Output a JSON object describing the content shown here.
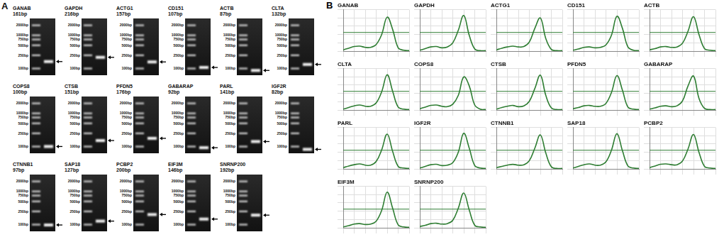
{
  "panel_a": {
    "label": "A",
    "ladder": [
      {
        "value": 2000,
        "label": "2000bp"
      },
      {
        "value": 1000,
        "label": "1000bp"
      },
      {
        "value": 750,
        "label": "750bp"
      },
      {
        "value": 500,
        "label": "500bp"
      },
      {
        "value": 250,
        "label": "250bp"
      },
      {
        "value": 100,
        "label": "100bp"
      }
    ],
    "rows": [
      [
        {
          "gene": "GANAB",
          "product": {
            "value": 161,
            "label": "161bp"
          }
        },
        {
          "gene": "GAPDH",
          "product": {
            "value": 216,
            "label": "216bp"
          }
        },
        {
          "gene": "ACTG1",
          "product": {
            "value": 157,
            "label": "157bp"
          }
        },
        {
          "gene": "CD151",
          "product": {
            "value": 107,
            "label": "107bp"
          }
        },
        {
          "gene": "ACTB",
          "product": {
            "value": 87,
            "label": "87bp"
          }
        },
        {
          "gene": "CLTA",
          "product": {
            "value": 132,
            "label": "132bp"
          }
        }
      ],
      [
        {
          "gene": "COPS8",
          "product": {
            "value": 100,
            "label": "100bp"
          }
        },
        {
          "gene": "CTSB",
          "product": {
            "value": 151,
            "label": "151bp"
          }
        },
        {
          "gene": "PFDN5",
          "product": {
            "value": 176,
            "label": "176bp"
          }
        },
        {
          "gene": "GABARAP",
          "product": {
            "value": 92,
            "label": "92bp"
          }
        },
        {
          "gene": "PARL",
          "product": {
            "value": 141,
            "label": "141bp"
          }
        },
        {
          "gene": "IGF2R",
          "product": {
            "value": 82,
            "label": "82bp"
          }
        }
      ],
      [
        {
          "gene": "CTNNB1",
          "product": {
            "value": 97,
            "label": "97bp"
          }
        },
        {
          "gene": "SAP18",
          "product": {
            "value": 127,
            "label": "127bp"
          }
        },
        {
          "gene": "PCBP2",
          "product": {
            "value": 200,
            "label": "200bp"
          }
        },
        {
          "gene": "EIF3M",
          "product": {
            "value": 146,
            "label": "146bp"
          }
        },
        {
          "gene": "SNRNP200",
          "product": {
            "value": 192,
            "label": "192bp"
          }
        }
      ]
    ]
  },
  "panel_b": {
    "label": "B"
  },
  "chart_data": [
    {
      "type": "line",
      "title": "GANAB",
      "x": [
        65,
        67.5,
        70,
        72.5,
        75,
        77.5,
        80,
        82.5,
        85,
        87.5,
        90,
        92.5,
        95
      ],
      "values": [
        3,
        7,
        11,
        12,
        9,
        9,
        16,
        40,
        82,
        52,
        8,
        2,
        1
      ],
      "threshold": 45,
      "xlim": [
        65,
        95
      ],
      "xticks": [
        65,
        70,
        75,
        80,
        85,
        90,
        95
      ],
      "ylim": [
        0,
        100
      ],
      "yticks": [
        0,
        20,
        40,
        60,
        80,
        100
      ],
      "grid": true,
      "tick_labels": false,
      "color": "#2e7d32"
    },
    {
      "type": "line",
      "title": "GAPDH",
      "x": [
        65,
        67.5,
        70,
        72.5,
        75,
        77.5,
        80,
        82.5,
        85,
        87.5,
        90,
        92.5,
        95
      ],
      "values": [
        2,
        6,
        10,
        11,
        8,
        10,
        20,
        50,
        86,
        38,
        5,
        1,
        1
      ],
      "threshold": 45,
      "xlim": [
        65,
        95
      ],
      "xticks": [
        65,
        70,
        75,
        80,
        85,
        90,
        95
      ],
      "ylim": [
        0,
        100
      ],
      "yticks": [
        0,
        20,
        40,
        60,
        80,
        100
      ],
      "grid": true,
      "tick_labels": false,
      "color": "#2e7d32"
    },
    {
      "type": "line",
      "title": "ACTG1",
      "x": [
        65,
        67.5,
        70,
        72.5,
        75,
        77.5,
        80,
        82.5,
        85,
        87.5,
        90,
        92.5,
        95
      ],
      "values": [
        3,
        7,
        10,
        12,
        10,
        11,
        22,
        55,
        80,
        30,
        4,
        1,
        1
      ],
      "threshold": 45,
      "xlim": [
        65,
        95
      ],
      "xticks": [
        65,
        70,
        75,
        80,
        85,
        90,
        95
      ],
      "ylim": [
        0,
        100
      ],
      "yticks": [
        0,
        20,
        40,
        60,
        80,
        100
      ],
      "grid": true,
      "tick_labels": false,
      "color": "#2e7d32"
    },
    {
      "type": "line",
      "title": "CD151",
      "x": [
        65,
        67.5,
        70,
        72.5,
        75,
        77.5,
        80,
        82.5,
        85,
        87.5,
        90,
        92.5,
        95
      ],
      "values": [
        2,
        5,
        9,
        10,
        8,
        9,
        15,
        38,
        84,
        55,
        10,
        2,
        1
      ],
      "threshold": 45,
      "xlim": [
        65,
        95
      ],
      "xticks": [
        65,
        70,
        75,
        80,
        85,
        90,
        95
      ],
      "ylim": [
        0,
        100
      ],
      "yticks": [
        0,
        20,
        40,
        60,
        80,
        100
      ],
      "grid": true,
      "tick_labels": false,
      "color": "#2e7d32"
    },
    {
      "type": "line",
      "title": "ACTB",
      "x": [
        65,
        67.5,
        70,
        72.5,
        75,
        77.5,
        80,
        82.5,
        85,
        87.5,
        90,
        92.5,
        95
      ],
      "values": [
        3,
        6,
        10,
        11,
        9,
        10,
        19,
        48,
        83,
        40,
        6,
        2,
        1
      ],
      "threshold": 45,
      "xlim": [
        65,
        95
      ],
      "xticks": [
        65,
        70,
        75,
        80,
        85,
        90,
        95
      ],
      "ylim": [
        0,
        100
      ],
      "yticks": [
        0,
        20,
        40,
        60,
        80,
        100
      ],
      "grid": true,
      "tick_labels": false,
      "color": "#2e7d32"
    },
    {
      "type": "line",
      "title": "CLTA",
      "x": [
        65,
        67.5,
        70,
        72.5,
        75,
        77.5,
        80,
        82.5,
        85,
        87.5,
        90,
        92.5,
        95
      ],
      "values": [
        2,
        6,
        10,
        12,
        9,
        9,
        17,
        44,
        85,
        45,
        7,
        2,
        1
      ],
      "threshold": 45,
      "xlim": [
        65,
        95
      ],
      "xticks": [
        65,
        70,
        75,
        80,
        85,
        90,
        95
      ],
      "ylim": [
        0,
        100
      ],
      "yticks": [
        0,
        20,
        40,
        60,
        80,
        100
      ],
      "grid": true,
      "tick_labels": false,
      "color": "#2e7d32"
    },
    {
      "type": "line",
      "title": "COPS8",
      "x": [
        65,
        67.5,
        70,
        72.5,
        75,
        77.5,
        80,
        82.5,
        85,
        87.5,
        90,
        92.5,
        95
      ],
      "values": [
        3,
        7,
        11,
        12,
        9,
        8,
        14,
        35,
        80,
        58,
        12,
        2,
        1
      ],
      "threshold": 45,
      "xlim": [
        65,
        95
      ],
      "xticks": [
        65,
        70,
        75,
        80,
        85,
        90,
        95
      ],
      "ylim": [
        0,
        100
      ],
      "yticks": [
        0,
        20,
        40,
        60,
        80,
        100
      ],
      "grid": true,
      "tick_labels": false,
      "color": "#2e7d32"
    },
    {
      "type": "line",
      "title": "CTSB",
      "x": [
        65,
        67.5,
        70,
        72.5,
        75,
        77.5,
        80,
        82.5,
        85,
        87.5,
        90,
        92.5,
        95
      ],
      "values": [
        2,
        6,
        9,
        11,
        8,
        10,
        21,
        52,
        84,
        35,
        5,
        1,
        1
      ],
      "threshold": 45,
      "xlim": [
        65,
        95
      ],
      "xticks": [
        65,
        70,
        75,
        80,
        85,
        90,
        95
      ],
      "ylim": [
        0,
        100
      ],
      "yticks": [
        0,
        20,
        40,
        60,
        80,
        100
      ],
      "grid": true,
      "tick_labels": false,
      "color": "#2e7d32"
    },
    {
      "type": "line",
      "title": "PFDN5",
      "x": [
        65,
        67.5,
        70,
        72.5,
        75,
        77.5,
        80,
        82.5,
        85,
        87.5,
        90,
        92.5,
        95
      ],
      "values": [
        3,
        6,
        10,
        11,
        9,
        9,
        16,
        42,
        83,
        48,
        7,
        2,
        1
      ],
      "threshold": 45,
      "xlim": [
        65,
        95
      ],
      "xticks": [
        65,
        70,
        75,
        80,
        85,
        90,
        95
      ],
      "ylim": [
        0,
        100
      ],
      "yticks": [
        0,
        20,
        40,
        60,
        80,
        100
      ],
      "grid": true,
      "tick_labels": false,
      "color": "#2e7d32"
    },
    {
      "type": "line",
      "title": "GABARAP",
      "x": [
        65,
        67.5,
        70,
        72.5,
        75,
        77.5,
        80,
        82.5,
        85,
        87.5,
        90,
        92.5,
        95
      ],
      "values": [
        2,
        5,
        9,
        10,
        8,
        10,
        22,
        58,
        82,
        28,
        4,
        1,
        1
      ],
      "threshold": 45,
      "xlim": [
        65,
        95
      ],
      "xticks": [
        65,
        70,
        75,
        80,
        85,
        90,
        95
      ],
      "ylim": [
        0,
        100
      ],
      "yticks": [
        0,
        20,
        40,
        60,
        80,
        100
      ],
      "grid": true,
      "tick_labels": false,
      "color": "#2e7d32"
    },
    {
      "type": "line",
      "title": "PARL",
      "x": [
        65,
        67.5,
        70,
        72.5,
        75,
        77.5,
        80,
        82.5,
        85,
        87.5,
        90,
        92.5,
        95
      ],
      "values": [
        3,
        7,
        10,
        12,
        9,
        9,
        18,
        46,
        84,
        42,
        6,
        2,
        1
      ],
      "threshold": 45,
      "xlim": [
        65,
        95
      ],
      "xticks": [
        65,
        70,
        75,
        80,
        85,
        90,
        95
      ],
      "ylim": [
        0,
        100
      ],
      "yticks": [
        0,
        20,
        40,
        60,
        80,
        100
      ],
      "grid": true,
      "tick_labels": false,
      "color": "#2e7d32"
    },
    {
      "type": "line",
      "title": "IGF2R",
      "x": [
        65,
        67.5,
        70,
        72.5,
        75,
        77.5,
        80,
        82.5,
        85,
        87.5,
        90,
        92.5,
        95
      ],
      "values": [
        2,
        6,
        10,
        11,
        8,
        9,
        15,
        40,
        86,
        50,
        8,
        2,
        1
      ],
      "threshold": 45,
      "xlim": [
        65,
        95
      ],
      "xticks": [
        65,
        70,
        75,
        80,
        85,
        90,
        95
      ],
      "ylim": [
        0,
        100
      ],
      "yticks": [
        0,
        20,
        40,
        60,
        80,
        100
      ],
      "grid": true,
      "tick_labels": false,
      "color": "#2e7d32"
    },
    {
      "type": "line",
      "title": "CTNNB1",
      "x": [
        65,
        67.5,
        70,
        72.5,
        75,
        77.5,
        80,
        82.5,
        85,
        87.5,
        90,
        92.5,
        95
      ],
      "values": [
        3,
        6,
        9,
        11,
        9,
        10,
        20,
        50,
        82,
        38,
        5,
        1,
        1
      ],
      "threshold": 45,
      "xlim": [
        65,
        95
      ],
      "xticks": [
        65,
        70,
        75,
        80,
        85,
        90,
        95
      ],
      "ylim": [
        0,
        100
      ],
      "yticks": [
        0,
        20,
        40,
        60,
        80,
        100
      ],
      "grid": true,
      "tick_labels": false,
      "color": "#2e7d32"
    },
    {
      "type": "line",
      "title": "SAP18",
      "x": [
        65,
        67.5,
        70,
        72.5,
        75,
        77.5,
        80,
        82.5,
        85,
        87.5,
        90,
        92.5,
        95
      ],
      "values": [
        2,
        6,
        10,
        12,
        9,
        9,
        17,
        45,
        85,
        44,
        7,
        2,
        1
      ],
      "threshold": 45,
      "xlim": [
        65,
        95
      ],
      "xticks": [
        65,
        70,
        75,
        80,
        85,
        90,
        95
      ],
      "ylim": [
        0,
        100
      ],
      "yticks": [
        0,
        20,
        40,
        60,
        80,
        100
      ],
      "grid": true,
      "tick_labels": false,
      "color": "#2e7d32"
    },
    {
      "type": "line",
      "title": "PCBP2",
      "x": [
        65,
        67.5,
        70,
        72.5,
        75,
        77.5,
        80,
        82.5,
        85,
        87.5,
        90,
        92.5,
        95
      ],
      "values": [
        3,
        7,
        11,
        12,
        10,
        10,
        19,
        48,
        83,
        40,
        6,
        2,
        1
      ],
      "threshold": 45,
      "xlim": [
        65,
        95
      ],
      "xticks": [
        65,
        70,
        75,
        80,
        85,
        90,
        95
      ],
      "ylim": [
        0,
        100
      ],
      "yticks": [
        0,
        20,
        40,
        60,
        80,
        100
      ],
      "grid": true,
      "tick_labels": false,
      "color": "#2e7d32"
    },
    {
      "type": "line",
      "title": "EIF3M",
      "x": [
        65,
        67.5,
        70,
        72.5,
        75,
        77.5,
        80,
        82.5,
        85,
        87.5,
        90,
        92.5,
        95
      ],
      "values": [
        2,
        5,
        9,
        10,
        8,
        9,
        16,
        42,
        86,
        47,
        7,
        2,
        1
      ],
      "threshold": 45,
      "xlim": [
        65,
        95
      ],
      "xticks": [
        65,
        70,
        75,
        80,
        85,
        90,
        95
      ],
      "ylim": [
        0,
        100
      ],
      "yticks": [
        0,
        20,
        40,
        60,
        80,
        100
      ],
      "grid": true,
      "tick_labels": false,
      "color": "#2e7d32"
    },
    {
      "type": "line",
      "title": "SNRNP200",
      "x": [
        65,
        67.5,
        70,
        72.5,
        75,
        77.5,
        80,
        82.5,
        85,
        87.5,
        90,
        92.5,
        95
      ],
      "values": [
        3,
        6,
        10,
        11,
        9,
        10,
        18,
        47,
        84,
        43,
        6,
        2,
        1
      ],
      "threshold": 45,
      "xlim": [
        65,
        95
      ],
      "xticks": [
        65,
        70,
        75,
        80,
        85,
        90,
        95
      ],
      "ylim": [
        0,
        100
      ],
      "yticks": [
        0,
        20,
        40,
        60,
        80,
        100
      ],
      "grid": true,
      "tick_labels": false,
      "color": "#2e7d32"
    }
  ]
}
